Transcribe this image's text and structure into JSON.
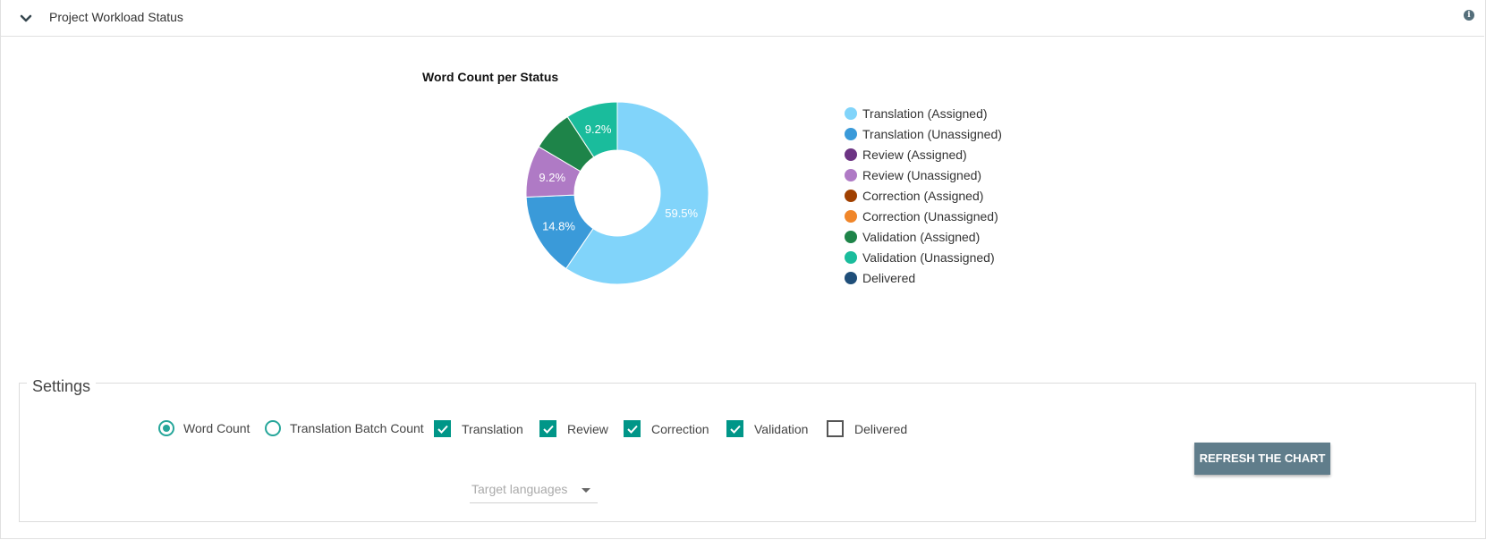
{
  "header": {
    "title": "Project Workload Status"
  },
  "chart_data": {
    "type": "pie",
    "title": "Word Count per Status",
    "slices": [
      {
        "label": "Translation (Assigned)",
        "value": 59.5,
        "color": "#81d4fa",
        "display": "59.5%"
      },
      {
        "label": "Translation (Unassigned)",
        "value": 14.8,
        "color": "#3a9ad9",
        "display": "14.8%"
      },
      {
        "label": "Review (Assigned)",
        "value": 0,
        "color": "#6c3483",
        "display": ""
      },
      {
        "label": "Review (Unassigned)",
        "value": 9.2,
        "color": "#af7ac5",
        "display": "9.2%"
      },
      {
        "label": "Correction (Assigned)",
        "value": 0,
        "color": "#a04000",
        "display": ""
      },
      {
        "label": "Correction (Unassigned)",
        "value": 0,
        "color": "#f0862a",
        "display": ""
      },
      {
        "label": "Validation (Assigned)",
        "value": 7.3,
        "color": "#1e8449",
        "display": ""
      },
      {
        "label": "Validation (Unassigned)",
        "value": 9.2,
        "color": "#1abc9c",
        "display": "9.2%"
      },
      {
        "label": "Delivered",
        "value": 0,
        "color": "#1f4e79",
        "display": ""
      }
    ]
  },
  "settings": {
    "label": "Settings",
    "mode_options": [
      {
        "label": "Word Count",
        "selected": true
      },
      {
        "label": "Translation Batch Count",
        "selected": false
      }
    ],
    "checkboxes": [
      {
        "label": "Translation",
        "checked": true
      },
      {
        "label": "Review",
        "checked": true
      },
      {
        "label": "Correction",
        "checked": true
      },
      {
        "label": "Validation",
        "checked": true
      },
      {
        "label": "Delivered",
        "checked": false
      }
    ],
    "target_languages_placeholder": "Target languages",
    "refresh_label": "REFRESH THE CHART"
  },
  "colors": {
    "accent": "#009688",
    "button": "#607d8b"
  }
}
